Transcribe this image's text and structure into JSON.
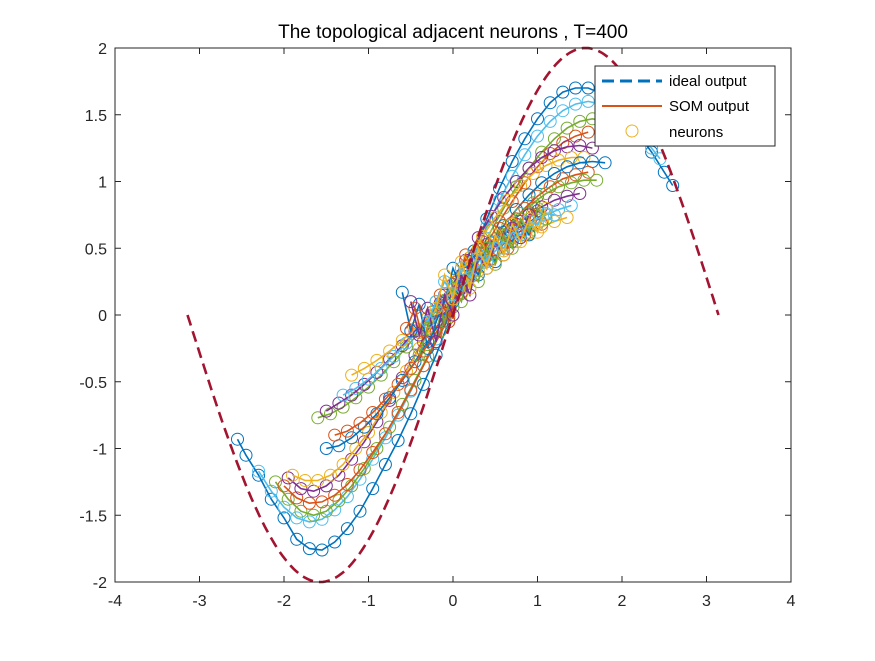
{
  "chart_data": {
    "type": "line",
    "title": "The topological adjacent neurons , T=400",
    "xlabel": "",
    "ylabel": "",
    "xlim": [
      -4,
      4
    ],
    "ylim": [
      -2,
      2
    ],
    "x_ticks": [
      -4,
      -3,
      -2,
      -1,
      0,
      1,
      2,
      3,
      4
    ],
    "y_ticks": [
      -2,
      -1.5,
      -1,
      -0.5,
      0,
      0.5,
      1,
      1.5,
      2
    ],
    "x_tick_labels": [
      "-4",
      "-3",
      "-2",
      "-1",
      "0",
      "1",
      "2",
      "3",
      "4"
    ],
    "y_tick_labels": [
      "-2",
      "-1.5",
      "-1",
      "-0.5",
      "0",
      "0.5",
      "1",
      "1.5",
      "2"
    ],
    "grid": false,
    "legend": {
      "position": "top-right",
      "entries": [
        "ideal output",
        "SOM output",
        "neurons"
      ]
    },
    "ideal_output": {
      "name": "ideal output",
      "function": "2*sin(x)",
      "x_range": [
        -3.1416,
        3.1416
      ],
      "color": "#A2142F",
      "style": "dashed"
    },
    "som_curves": [
      {
        "color": "#0072BD",
        "x": [
          -2.55,
          -2.45,
          -2.3,
          -2.15,
          -2.0,
          -1.85,
          -1.7,
          -1.55,
          -1.4,
          -1.25,
          -1.1,
          -0.95,
          -0.8,
          -0.65,
          -0.5,
          -0.35,
          -0.2,
          -0.05,
          0.1,
          0.25,
          0.4,
          0.55,
          0.7,
          0.85,
          1.0,
          1.15,
          1.3,
          1.45,
          1.6,
          1.75,
          1.9,
          2.05,
          2.2,
          2.35,
          2.5,
          2.6
        ],
        "y": [
          -0.93,
          -1.05,
          -1.2,
          -1.38,
          -1.52,
          -1.68,
          -1.75,
          -1.76,
          -1.7,
          -1.6,
          -1.47,
          -1.3,
          -1.12,
          -0.94,
          -0.74,
          -0.52,
          -0.3,
          -0.05,
          0.2,
          0.48,
          0.72,
          0.95,
          1.15,
          1.32,
          1.47,
          1.59,
          1.67,
          1.7,
          1.7,
          1.66,
          1.58,
          1.47,
          1.35,
          1.22,
          1.07,
          0.97
        ]
      },
      {
        "color": "#4DBEEE",
        "x": [
          -2.3,
          -2.15,
          -2.0,
          -1.85,
          -1.7,
          -1.55,
          -1.4,
          -1.25,
          -1.1,
          -0.95,
          -0.8,
          -0.65,
          -0.5,
          -0.35,
          -0.2,
          -0.05,
          0.1,
          0.25,
          0.4,
          0.55,
          0.7,
          0.85,
          1.0,
          1.15,
          1.3,
          1.45,
          1.6,
          1.75,
          1.9,
          2.05,
          2.2,
          2.35,
          2.45
        ],
        "y": [
          -1.17,
          -1.32,
          -1.44,
          -1.52,
          -1.55,
          -1.53,
          -1.46,
          -1.36,
          -1.23,
          -1.08,
          -0.92,
          -0.75,
          -0.57,
          -0.38,
          -0.18,
          0.02,
          0.24,
          0.45,
          0.66,
          0.86,
          1.04,
          1.2,
          1.34,
          1.45,
          1.53,
          1.58,
          1.6,
          1.58,
          1.53,
          1.45,
          1.36,
          1.25,
          1.17
        ]
      },
      {
        "color": "#77AC30",
        "x": [
          -2.1,
          -1.95,
          -1.8,
          -1.65,
          -1.5,
          -1.35,
          -1.2,
          -1.05,
          -0.9,
          -0.75,
          -0.6,
          -0.45,
          -0.3,
          -0.15,
          0.0,
          0.15,
          0.3,
          0.45,
          0.6,
          0.75,
          0.9,
          1.05,
          1.2,
          1.35,
          1.5,
          1.65,
          1.8
        ],
        "y": [
          -1.25,
          -1.38,
          -1.47,
          -1.5,
          -1.47,
          -1.39,
          -1.28,
          -1.15,
          -1.0,
          -0.84,
          -0.67,
          -0.49,
          -0.31,
          -0.12,
          0.06,
          0.26,
          0.45,
          0.63,
          0.8,
          0.96,
          1.1,
          1.22,
          1.32,
          1.4,
          1.45,
          1.47,
          1.45
        ]
      },
      {
        "color": "#D95319",
        "x": [
          -2.0,
          -1.85,
          -1.7,
          -1.55,
          -1.4,
          -1.25,
          -1.1,
          -0.95,
          -0.8,
          -0.65,
          -0.5,
          -0.35,
          -0.2,
          -0.05,
          0.1,
          0.25,
          0.4,
          0.55,
          0.7,
          0.85,
          1.0,
          1.15,
          1.3,
          1.45,
          1.6
        ],
        "y": [
          -1.28,
          -1.37,
          -1.41,
          -1.4,
          -1.35,
          -1.27,
          -1.16,
          -1.03,
          -0.89,
          -0.73,
          -0.56,
          -0.38,
          -0.2,
          -0.02,
          0.17,
          0.35,
          0.53,
          0.7,
          0.85,
          0.99,
          1.11,
          1.21,
          1.29,
          1.34,
          1.37
        ]
      },
      {
        "color": "#7E2F8E",
        "x": [
          -1.95,
          -1.8,
          -1.65,
          -1.5,
          -1.35,
          -1.2,
          -1.05,
          -0.9,
          -0.75,
          -0.6,
          -0.45,
          -0.3,
          -0.15,
          0.0,
          0.15,
          0.3,
          0.45,
          0.6,
          0.75,
          0.9,
          1.05,
          1.2,
          1.35,
          1.5,
          1.65
        ],
        "y": [
          -1.22,
          -1.3,
          -1.32,
          -1.28,
          -1.2,
          -1.08,
          -0.95,
          -0.8,
          -0.64,
          -0.47,
          -0.3,
          -0.12,
          0.05,
          0.23,
          0.41,
          0.58,
          0.74,
          0.88,
          1.0,
          1.1,
          1.18,
          1.23,
          1.26,
          1.27,
          1.25
        ]
      },
      {
        "color": "#EDB120",
        "x": [
          -1.9,
          -1.75,
          -1.6,
          -1.45,
          -1.3,
          -1.15,
          -1.0,
          -0.85,
          -0.7,
          -0.55,
          -0.4,
          -0.25,
          -0.1,
          0.05,
          0.2,
          0.35,
          0.5,
          0.65,
          0.8,
          0.95,
          1.1,
          1.25,
          1.4,
          1.55
        ],
        "y": [
          -1.2,
          -1.24,
          -1.24,
          -1.2,
          -1.12,
          -1.0,
          -0.88,
          -0.73,
          -0.58,
          -0.42,
          -0.25,
          -0.08,
          0.09,
          0.26,
          0.43,
          0.59,
          0.73,
          0.86,
          0.97,
          1.06,
          1.12,
          1.16,
          1.18,
          1.18
        ]
      },
      {
        "color": "#0072BD",
        "x": [
          -1.5,
          -1.35,
          -1.2,
          -1.05,
          -0.9,
          -0.75,
          -0.6,
          -0.45,
          -0.3,
          -0.15,
          0.0,
          0.15,
          0.3,
          0.45,
          0.6,
          0.75,
          0.9,
          1.05,
          1.2,
          1.35,
          1.5,
          1.65,
          1.8
        ],
        "y": [
          -1.0,
          -0.98,
          -0.92,
          -0.84,
          -0.74,
          -0.62,
          -0.49,
          -0.35,
          -0.2,
          -0.05,
          0.1,
          0.25,
          0.4,
          0.54,
          0.67,
          0.79,
          0.9,
          0.99,
          1.06,
          1.11,
          1.14,
          1.15,
          1.14
        ]
      },
      {
        "color": "#D95319",
        "x": [
          -1.4,
          -1.25,
          -1.1,
          -0.95,
          -0.8,
          -0.65,
          -0.5,
          -0.35,
          -0.2,
          -0.05,
          0.1,
          0.25,
          0.4,
          0.55,
          0.7,
          0.85,
          1.0,
          1.15,
          1.3,
          1.45,
          1.6
        ],
        "y": [
          -0.9,
          -0.87,
          -0.81,
          -0.73,
          -0.63,
          -0.52,
          -0.4,
          -0.27,
          -0.13,
          0.01,
          0.16,
          0.3,
          0.44,
          0.57,
          0.69,
          0.8,
          0.89,
          0.96,
          1.02,
          1.05,
          1.07
        ]
      },
      {
        "color": "#77AC30",
        "x": [
          -1.6,
          -1.45,
          -1.3,
          -1.15,
          -1.0,
          -0.85,
          -0.7,
          -0.55,
          -0.4,
          -0.25,
          -0.1,
          0.05,
          0.2,
          0.35,
          0.5,
          0.65,
          0.8,
          0.95,
          1.1,
          1.25,
          1.4,
          1.55,
          1.7
        ],
        "y": [
          -0.77,
          -0.74,
          -0.69,
          -0.62,
          -0.54,
          -0.45,
          -0.35,
          -0.24,
          -0.13,
          -0.01,
          0.11,
          0.23,
          0.35,
          0.46,
          0.57,
          0.67,
          0.76,
          0.84,
          0.91,
          0.96,
          0.99,
          1.01,
          1.01
        ]
      },
      {
        "color": "#7E2F8E",
        "x": [
          -1.5,
          -1.35,
          -1.2,
          -1.05,
          -0.9,
          -0.75,
          -0.6,
          -0.45,
          -0.3,
          -0.15,
          0.0,
          0.15,
          0.3,
          0.45,
          0.6,
          0.75,
          0.9,
          1.05,
          1.2,
          1.35,
          1.5
        ],
        "y": [
          -0.72,
          -0.66,
          -0.6,
          -0.52,
          -0.43,
          -0.33,
          -0.23,
          -0.12,
          -0.02,
          0.09,
          0.2,
          0.31,
          0.41,
          0.51,
          0.6,
          0.68,
          0.75,
          0.81,
          0.86,
          0.89,
          0.91
        ]
      },
      {
        "color": "#4DBEEE",
        "x": [
          -1.3,
          -1.15,
          -1.0,
          -0.85,
          -0.7,
          -0.55,
          -0.4,
          -0.25,
          -0.1,
          0.05,
          0.2,
          0.35,
          0.5,
          0.65,
          0.8,
          0.95,
          1.1,
          1.25,
          1.4
        ],
        "y": [
          -0.6,
          -0.55,
          -0.48,
          -0.4,
          -0.31,
          -0.21,
          -0.11,
          0.0,
          0.1,
          0.2,
          0.3,
          0.39,
          0.48,
          0.56,
          0.63,
          0.7,
          0.75,
          0.79,
          0.82
        ]
      },
      {
        "color": "#EDB120",
        "x": [
          -1.2,
          -1.05,
          -0.9,
          -0.75,
          -0.6,
          -0.45,
          -0.3,
          -0.15,
          0.0,
          0.15,
          0.3,
          0.45,
          0.6,
          0.75,
          0.9,
          1.05,
          1.2,
          1.35
        ],
        "y": [
          -0.45,
          -0.4,
          -0.34,
          -0.27,
          -0.19,
          -0.1,
          -0.02,
          0.07,
          0.16,
          0.25,
          0.33,
          0.41,
          0.48,
          0.55,
          0.61,
          0.66,
          0.7,
          0.73
        ]
      },
      {
        "color": "#0072BD",
        "x": [
          -0.6,
          -0.5,
          -0.4,
          -0.3,
          -0.2,
          -0.1,
          0.0,
          0.1,
          0.2,
          0.3,
          0.4,
          0.5,
          0.6,
          0.7,
          0.8,
          0.9,
          1.0
        ],
        "y": [
          0.17,
          -0.12,
          0.08,
          -0.25,
          -0.05,
          0.1,
          0.35,
          0.2,
          0.4,
          0.3,
          0.5,
          0.4,
          0.62,
          0.55,
          0.7,
          0.6,
          0.78
        ]
      },
      {
        "color": "#D95319",
        "x": [
          -0.55,
          -0.45,
          -0.35,
          -0.25,
          -0.15,
          -0.05,
          0.05,
          0.15,
          0.25,
          0.35,
          0.45,
          0.55,
          0.65,
          0.75,
          0.85,
          0.95,
          1.05
        ],
        "y": [
          -0.1,
          0.05,
          -0.2,
          0.02,
          0.15,
          -0.05,
          0.25,
          0.45,
          0.3,
          0.55,
          0.42,
          0.65,
          0.5,
          0.72,
          0.6,
          0.8,
          0.68
        ]
      },
      {
        "color": "#77AC30",
        "x": [
          -0.4,
          -0.3,
          -0.2,
          -0.1,
          0.0,
          0.1,
          0.2,
          0.3,
          0.4,
          0.5,
          0.6,
          0.7,
          0.8,
          0.9,
          1.0,
          1.1
        ],
        "y": [
          -0.3,
          -0.1,
          0.1,
          -0.05,
          0.2,
          0.1,
          0.35,
          0.25,
          0.5,
          0.38,
          0.6,
          0.5,
          0.72,
          0.62,
          0.8,
          0.72
        ]
      },
      {
        "color": "#7E2F8E",
        "x": [
          -0.5,
          -0.4,
          -0.3,
          -0.2,
          -0.1,
          0.0,
          0.1,
          0.2,
          0.3,
          0.4,
          0.5,
          0.6,
          0.7,
          0.8,
          0.9
        ],
        "y": [
          0.1,
          -0.15,
          0.05,
          -0.2,
          0.15,
          0.0,
          0.3,
          0.15,
          0.45,
          0.35,
          0.55,
          0.45,
          0.65,
          0.58,
          0.75
        ]
      },
      {
        "color": "#4DBEEE",
        "x": [
          -0.3,
          -0.2,
          -0.1,
          0.0,
          0.1,
          0.2,
          0.3,
          0.4,
          0.5,
          0.6,
          0.7,
          0.8,
          0.9,
          1.0,
          1.1,
          1.2
        ],
        "y": [
          -0.05,
          0.1,
          0.25,
          0.15,
          0.35,
          0.28,
          0.45,
          0.4,
          0.55,
          0.5,
          0.62,
          0.6,
          0.7,
          0.68,
          0.76,
          0.75
        ]
      },
      {
        "color": "#EDB120",
        "x": [
          -0.2,
          -0.1,
          0.0,
          0.1,
          0.2,
          0.3,
          0.4,
          0.5,
          0.6,
          0.7,
          0.8,
          0.9,
          1.0,
          1.1
        ],
        "y": [
          0.05,
          0.3,
          0.12,
          0.4,
          0.2,
          0.5,
          0.35,
          0.6,
          0.45,
          0.68,
          0.55,
          0.72,
          0.62,
          0.8
        ]
      }
    ]
  }
}
